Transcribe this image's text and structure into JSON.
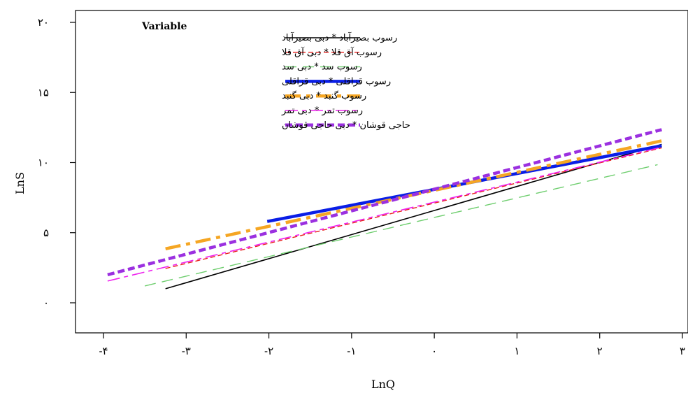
{
  "chart_data": {
    "type": "line",
    "xlabel": "LnQ",
    "ylabel": "LnS",
    "xlim": [
      -4.3,
      3.3
    ],
    "ylim": [
      -2.2,
      20.8
    ],
    "x_ticks": [
      {
        "value": -4,
        "label": "-۴"
      },
      {
        "value": -3,
        "label": "-۳"
      },
      {
        "value": -2,
        "label": "-۲"
      },
      {
        "value": -1,
        "label": "-۱"
      },
      {
        "value": 0,
        "label": "۰"
      },
      {
        "value": 1,
        "label": "۱"
      },
      {
        "value": 2,
        "label": "۲"
      },
      {
        "value": 3,
        "label": "۳"
      }
    ],
    "y_ticks": [
      {
        "value": 0,
        "label": "۰"
      },
      {
        "value": 5,
        "label": "۵"
      },
      {
        "value": 10,
        "label": "۱۰"
      },
      {
        "value": 15,
        "label": "۱۵"
      },
      {
        "value": 20,
        "label": "۲۰"
      }
    ],
    "legend_title": "Variable",
    "legend_position": "top-left",
    "series": [
      {
        "name": "رسوب بصیرآباد * دبی بصیرآباد",
        "color": "#000000",
        "style": "solid",
        "width": 1.6,
        "x": [
          -3.25,
          2.75
        ],
        "y": [
          1.0,
          11.3
        ]
      },
      {
        "name": "رسوب آق قلا * دبی آق قلا",
        "color": "#e8201c",
        "style": "short-dash",
        "width": 1.4,
        "x": [
          -3.25,
          2.75
        ],
        "y": [
          2.45,
          11.05
        ]
      },
      {
        "name": "رسوب سد * دبی سد",
        "color": "#6fce6f",
        "style": "long-dash",
        "width": 1.4,
        "x": [
          -3.5,
          2.7
        ],
        "y": [
          1.2,
          9.85
        ]
      },
      {
        "name": "رسوب قزاقلی * دبی قزاقلی",
        "color": "#0a1ee6",
        "style": "solid",
        "width": 4.5,
        "x": [
          -2.02,
          2.75
        ],
        "y": [
          5.8,
          11.2
        ]
      },
      {
        "name": "رسوب گنبد * دبی گنبد",
        "color": "#f5a623",
        "style": "dash-dot",
        "width": 4.5,
        "x": [
          -3.25,
          2.75
        ],
        "y": [
          3.85,
          11.55
        ]
      },
      {
        "name": "رسوب تمر * دبی تمر",
        "color": "#ee22ee",
        "style": "long-short-dash",
        "width": 1.6,
        "x": [
          -3.95,
          2.75
        ],
        "y": [
          1.55,
          11.1
        ]
      },
      {
        "name": "حاجی قوشان * دبی حاجی قوشان",
        "color": "#9b30e0",
        "style": "dash",
        "width": 4.5,
        "x": [
          -3.95,
          2.75
        ],
        "y": [
          2.0,
          12.35
        ]
      }
    ]
  }
}
